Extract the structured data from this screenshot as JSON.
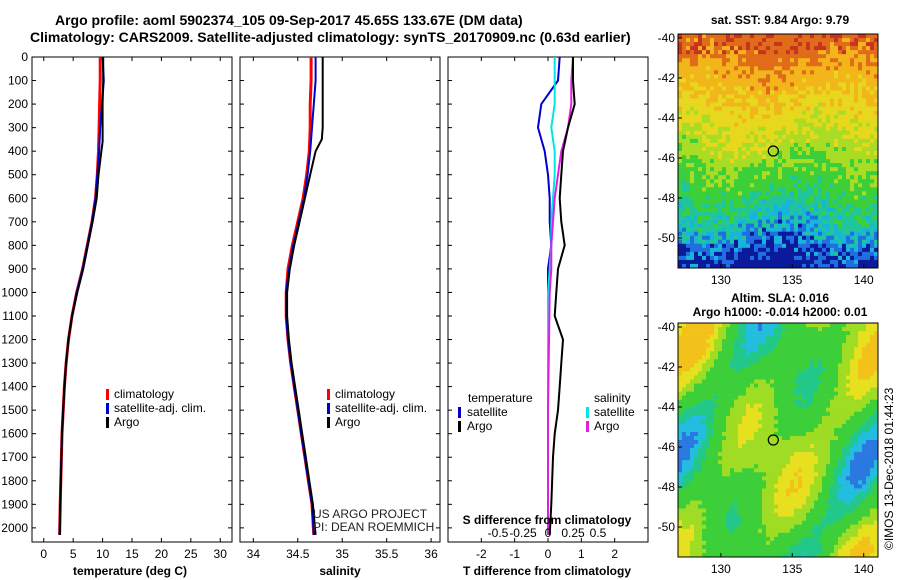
{
  "header": {
    "line1": "Argo profile: aoml 5902374_105 09-Sep-2017 45.65S 133.67E (DM data)",
    "line2": "Climatology: CARS2009. Satellite-adjusted climatology: synTS_20170909.nc (0.63d earlier)"
  },
  "colors": {
    "climatology": "#ff0000",
    "satellite": "#0000cc",
    "argo": "#000000",
    "salinity_satellite": "#00e5e5",
    "salinity_argo": "#e020e0"
  },
  "depth_axis": {
    "ylim": [
      0,
      2060
    ],
    "ticks": [
      0,
      100,
      200,
      300,
      400,
      500,
      600,
      700,
      800,
      900,
      1000,
      1100,
      1200,
      1300,
      1400,
      1500,
      1600,
      1700,
      1800,
      1900,
      2000
    ]
  },
  "chart_data": [
    {
      "type": "line",
      "id": "temperature",
      "xlabel": "temperature (deg C)",
      "xlim": [
        -2,
        32
      ],
      "xticks": [
        0,
        5,
        10,
        15,
        20,
        25,
        30
      ],
      "xtick_labels": [
        "0",
        "5",
        "10",
        "15",
        "20",
        "25",
        "30"
      ],
      "legend": [
        "climatology",
        "satellite-adj. clim.",
        "Argo"
      ],
      "series": [
        {
          "name": "climatology",
          "color": "#ff0000",
          "x": [
            9.6,
            9.6,
            9.5,
            9.4,
            9.3,
            9.1,
            8.8,
            8.2,
            7.4,
            6.6,
            5.6,
            4.8,
            4.2,
            3.8,
            3.5,
            3.3,
            3.1,
            3.0,
            2.9,
            2.8,
            2.7
          ],
          "y": [
            0,
            100,
            200,
            300,
            400,
            500,
            600,
            700,
            800,
            900,
            1000,
            1100,
            1200,
            1300,
            1400,
            1500,
            1600,
            1700,
            1800,
            1900,
            2030
          ]
        },
        {
          "name": "satellite-adj. clim.",
          "color": "#0000cc",
          "x": [
            10.0,
            10.2,
            9.9,
            9.6,
            9.4,
            9.1,
            8.8,
            8.2,
            7.4,
            6.6,
            5.6,
            4.8,
            4.2,
            3.8,
            3.5,
            3.3,
            3.1,
            3.0,
            2.9,
            2.8,
            2.7
          ],
          "y": [
            0,
            100,
            200,
            300,
            400,
            500,
            600,
            700,
            800,
            900,
            1000,
            1100,
            1200,
            1300,
            1400,
            1500,
            1600,
            1700,
            1800,
            1900,
            2030
          ]
        },
        {
          "name": "Argo",
          "color": "#000000",
          "x": [
            10.1,
            10.1,
            10.0,
            10.0,
            10.0,
            9.7,
            9.3,
            9.0,
            8.3,
            7.5,
            6.7,
            5.7,
            4.8,
            4.2,
            3.8,
            3.5,
            3.3,
            3.1,
            3.0,
            2.9,
            2.75
          ],
          "y": [
            0,
            100,
            200,
            300,
            360,
            420,
            500,
            600,
            700,
            800,
            900,
            1000,
            1100,
            1200,
            1300,
            1400,
            1500,
            1600,
            1700,
            1800,
            2030
          ]
        }
      ]
    },
    {
      "type": "line",
      "id": "salinity",
      "xlabel": "salinity",
      "xlim": [
        33.85,
        36.1
      ],
      "xticks": [
        34,
        34.5,
        35,
        35.5,
        36
      ],
      "xtick_labels": [
        "34",
        "34.5",
        "35",
        "35.5",
        "36"
      ],
      "legend": [
        "climatology",
        "satellite-adj. clim.",
        "Argo"
      ],
      "series": [
        {
          "name": "climatology",
          "color": "#ff0000",
          "x": [
            34.65,
            34.65,
            34.64,
            34.64,
            34.63,
            34.6,
            34.56,
            34.5,
            34.44,
            34.39,
            34.37,
            34.37,
            34.39,
            34.42,
            34.46,
            34.5,
            34.54,
            34.58,
            34.62,
            34.66,
            34.68
          ],
          "y": [
            0,
            100,
            200,
            300,
            400,
            500,
            600,
            700,
            800,
            900,
            1000,
            1100,
            1200,
            1300,
            1400,
            1500,
            1600,
            1700,
            1800,
            1900,
            2030
          ]
        },
        {
          "name": "satellite-adj. clim.",
          "color": "#0000cc",
          "x": [
            34.7,
            34.7,
            34.68,
            34.66,
            34.64,
            34.61,
            34.57,
            34.51,
            34.45,
            34.4,
            34.37,
            34.37,
            34.39,
            34.42,
            34.46,
            34.5,
            34.54,
            34.58,
            34.62,
            34.66,
            34.68
          ],
          "y": [
            0,
            100,
            200,
            300,
            400,
            500,
            600,
            700,
            800,
            900,
            1000,
            1100,
            1200,
            1300,
            1400,
            1500,
            1600,
            1700,
            1800,
            1900,
            2030
          ]
        },
        {
          "name": "Argo",
          "color": "#000000",
          "x": [
            34.78,
            34.78,
            34.78,
            34.78,
            34.77,
            34.7,
            34.64,
            34.58,
            34.52,
            34.46,
            34.41,
            34.38,
            34.38,
            34.4,
            34.43,
            34.47,
            34.51,
            34.55,
            34.59,
            34.63,
            34.67,
            34.7
          ],
          "y": [
            0,
            100,
            200,
            300,
            350,
            400,
            500,
            600,
            700,
            800,
            900,
            1000,
            1100,
            1200,
            1300,
            1400,
            1500,
            1600,
            1700,
            1800,
            1900,
            2030
          ]
        }
      ]
    },
    {
      "type": "line",
      "id": "difference",
      "xlabel": "T difference from climatology",
      "xlabel2": "S difference from climatology",
      "xlim": [
        -3,
        3
      ],
      "xticks": [
        -2,
        -1,
        0,
        1,
        2
      ],
      "xtick_labels": [
        "-2",
        "-1",
        "0",
        "1",
        "2"
      ],
      "sticks": [
        -1.5,
        -0.75,
        0,
        0.75,
        1.5
      ],
      "stick_labels": [
        "-0.5",
        "-0.25",
        "0",
        "0.25",
        "0.5"
      ],
      "legend_left_title": "temperature",
      "legend_right_title": "salinity",
      "legend_left": [
        "satellite",
        "Argo"
      ],
      "legend_right": [
        "satellite",
        "Argo"
      ],
      "series": [
        {
          "name": "T satellite",
          "color": "#0000cc",
          "x": [
            0.35,
            0.3,
            -0.2,
            -0.3,
            -0.1,
            0.0,
            0.05,
            0.05,
            0.1,
            0.0,
            0.0,
            0.0,
            0.0,
            0.0,
            0.0
          ],
          "y": [
            0,
            100,
            200,
            300,
            400,
            500,
            600,
            700,
            800,
            900,
            1000,
            1200,
            1400,
            1700,
            2030
          ]
        },
        {
          "name": "S satellite",
          "color": "#00e5e5",
          "x": [
            0.2,
            0.2,
            0.2,
            0.1,
            0.2,
            0.2,
            0.15,
            0.1,
            0.1,
            0.05,
            0.0,
            0.0,
            0.0
          ],
          "y": [
            0,
            100,
            200,
            300,
            400,
            500,
            600,
            700,
            800,
            900,
            1000,
            1500,
            2030
          ]
        },
        {
          "name": "S Argo",
          "color": "#e020e0",
          "x": [
            0.75,
            0.7,
            0.7,
            0.6,
            0.4,
            0.3,
            0.2,
            0.15,
            0.1,
            0.1,
            0.05,
            0.0,
            0.0
          ],
          "y": [
            0,
            100,
            200,
            300,
            400,
            500,
            600,
            700,
            800,
            900,
            1000,
            1500,
            2030
          ]
        },
        {
          "name": "T Argo",
          "color": "#000000",
          "x": [
            0.75,
            0.75,
            0.8,
            0.6,
            0.45,
            0.4,
            0.35,
            0.4,
            0.5,
            0.3,
            0.25,
            0.2,
            0.45,
            0.4,
            0.35,
            0.3,
            0.2,
            0.15,
            0.1,
            0.05
          ],
          "y": [
            0,
            100,
            200,
            300,
            400,
            500,
            600,
            700,
            800,
            900,
            1000,
            1100,
            1200,
            1300,
            1400,
            1500,
            1600,
            1700,
            1900,
            2030
          ]
        }
      ]
    },
    {
      "type": "heatmap",
      "id": "sst_map",
      "title": "sat. SST: 9.84 Argo: 9.79",
      "xlim": [
        127,
        141
      ],
      "ylim": [
        -51.5,
        -39.8
      ],
      "xticks": [
        130,
        135,
        140
      ],
      "xtick_labels": [
        "130",
        "135",
        "140"
      ],
      "yticks": [
        -40,
        -42,
        -44,
        -46,
        -48,
        -50
      ],
      "ytick_labels": [
        "-40",
        "-42",
        "-44",
        "-46",
        "-48",
        "-50"
      ],
      "marker": {
        "lon": 133.67,
        "lat": -45.65
      }
    },
    {
      "type": "heatmap",
      "id": "sla_map",
      "title1": "Altim. SLA: 0.016",
      "title2": "Argo h1000: -0.014 h2000: 0.01",
      "xlim": [
        127,
        141
      ],
      "ylim": [
        -51.5,
        -39.8
      ],
      "xticks": [
        130,
        135,
        140
      ],
      "xtick_labels": [
        "130",
        "135",
        "140"
      ],
      "yticks": [
        -40,
        -42,
        -44,
        -46,
        -48,
        -50
      ],
      "ytick_labels": [
        "-40",
        "-42",
        "-44",
        "-46",
        "-48",
        "-50"
      ],
      "marker": {
        "lon": 133.67,
        "lat": -45.65
      }
    }
  ],
  "annotations": {
    "project_line1": "US ARGO PROJECT",
    "project_line2": "PI: DEAN ROEMMICH",
    "stamp": "©IMOS 13-Dec-2018 01:44:23"
  }
}
